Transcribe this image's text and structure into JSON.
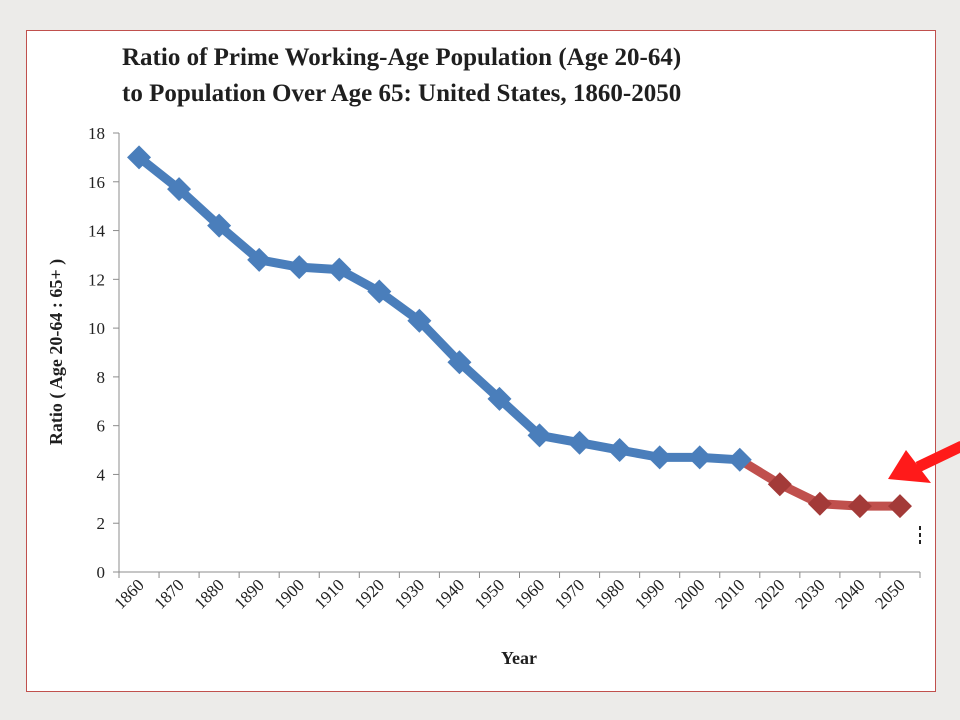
{
  "colors": {
    "historical": "#4a7ebb",
    "projected": "#c0504d",
    "projected_marker": "#a33a38",
    "arrow": "#ff1a1a",
    "frame": "#c0504d"
  },
  "icons": {
    "pointer": "red-arrow-icon"
  },
  "chart_data": {
    "type": "line",
    "title": "Ratio of Prime Working-Age Population (Age 20-64) to Population Over Age 65: United States, 1860-2050",
    "title_lines": [
      "Ratio of Prime Working-Age Population (Age 20-64)",
      "to Population Over Age 65: United States, 1860-2050"
    ],
    "xlabel": "Year",
    "ylabel": "Ratio ( Age 20-64 : 65+ )",
    "ylim": [
      0,
      18
    ],
    "y_ticks": [
      "0",
      "2",
      "4",
      "6",
      "8",
      "10",
      "12",
      "14",
      "16",
      "18"
    ],
    "categories": [
      "1860",
      "1870",
      "1880",
      "1890",
      "1900",
      "1910",
      "1920",
      "1930",
      "1940",
      "1950",
      "1960",
      "1970",
      "1980",
      "1990",
      "2000",
      "2010",
      "2020",
      "2030",
      "2040",
      "2050"
    ],
    "grid": false,
    "legend": "none",
    "series": [
      {
        "values": [
          17.0,
          15.7,
          14.2,
          12.8,
          12.5,
          12.4,
          11.5,
          10.3,
          8.6,
          7.1,
          5.6,
          5.3,
          5.0,
          4.7,
          4.7,
          4.6,
          null,
          null,
          null,
          null
        ]
      },
      {
        "values": [
          null,
          null,
          null,
          null,
          null,
          null,
          null,
          null,
          null,
          null,
          null,
          null,
          null,
          null,
          null,
          4.6,
          3.6,
          2.8,
          2.7,
          2.7
        ]
      }
    ]
  }
}
